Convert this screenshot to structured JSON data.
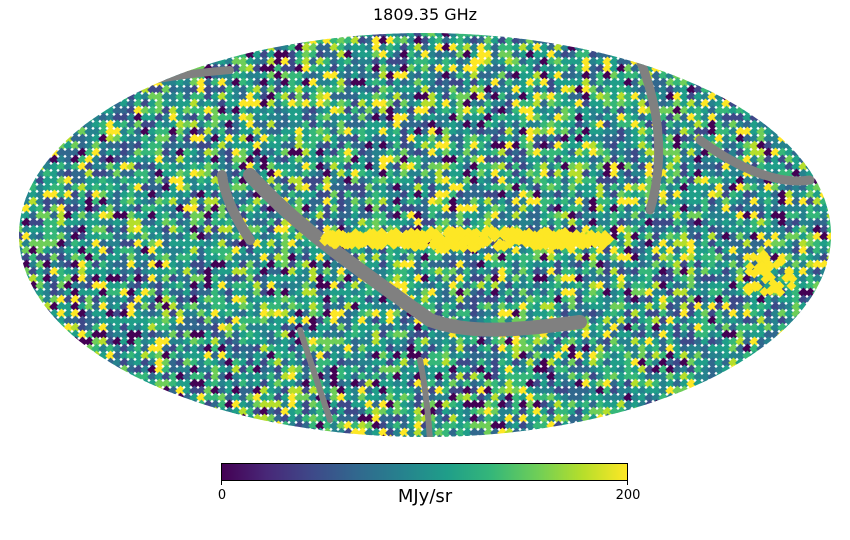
{
  "title": "1809.35 GHz",
  "projection": "mollweide",
  "colormap": "viridis",
  "colormap_stops": [
    "#440154",
    "#482878",
    "#3e4989",
    "#31688e",
    "#26828e",
    "#1f9e89",
    "#35b779",
    "#6ece58",
    "#b5de2b",
    "#fde725"
  ],
  "masked_color": "#808080",
  "colorbar": {
    "min": 0,
    "max": 200,
    "min_label": "0",
    "max_label": "200",
    "unit": "MJy/sr"
  }
}
